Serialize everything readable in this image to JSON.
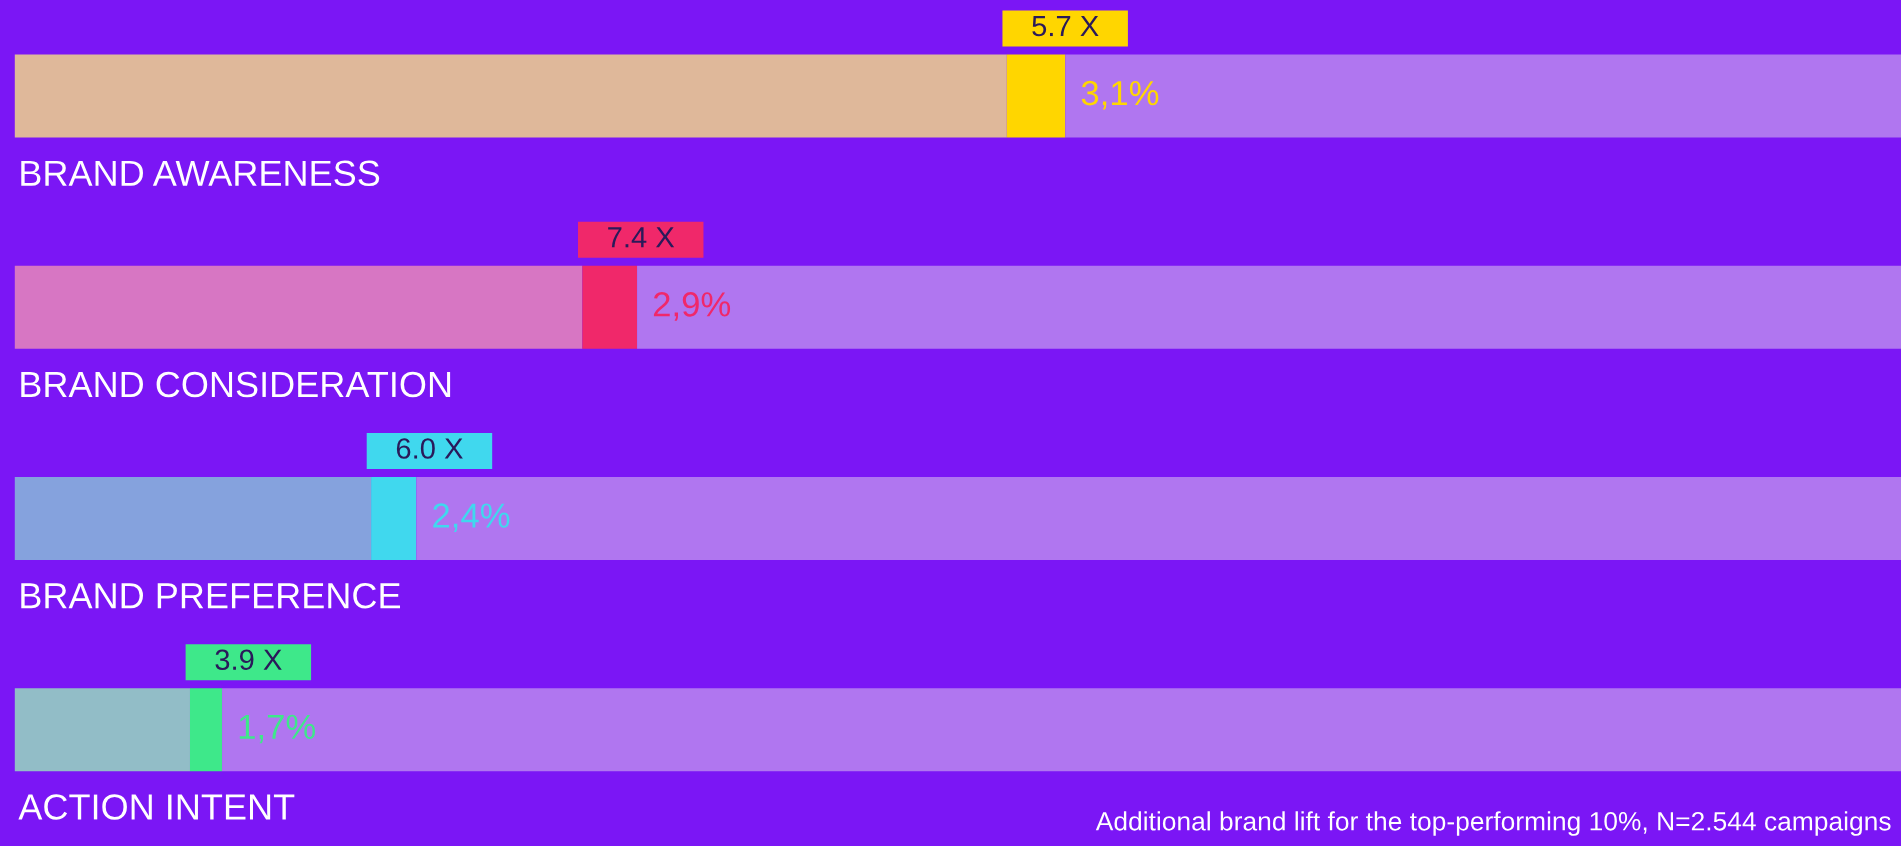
{
  "chart_data": {
    "type": "bar",
    "orientation": "horizontal",
    "stacked": true,
    "legend": false,
    "xlim": [
      0,
      100
    ],
    "categories": [
      "BRAND AWARENESS",
      "BRAND CONSIDERATION",
      "BRAND PREFERENCE",
      "ACTION INTENT"
    ],
    "series": [
      {
        "colors": [
          "#dfb89a",
          "#d776c3",
          "#85a2dd",
          "#92bdc7"
        ],
        "values": [
          52.6,
          30.1,
          18.9,
          9.3
        ]
      },
      {
        "colors": [
          "#ffd600",
          "#f0286a",
          "#40d8ee",
          "#3ee88a"
        ],
        "values": [
          3.1,
          2.9,
          2.4,
          1.7
        ],
        "value_labels": [
          "3,1%",
          "2,9%",
          "2,4%",
          "1,7%"
        ]
      },
      {
        "colors": [
          "#b076f0",
          "#b076f0",
          "#b076f0",
          "#b076f0"
        ],
        "values": [
          44.3,
          67.0,
          78.7,
          89.0
        ]
      }
    ],
    "annotations": [
      "5.7 X",
      "7.4 X",
      "6.0 X",
      "3.9 X",
      "Additional brand lift for the top-performing 10%, N=2.544 campaigns"
    ]
  }
}
